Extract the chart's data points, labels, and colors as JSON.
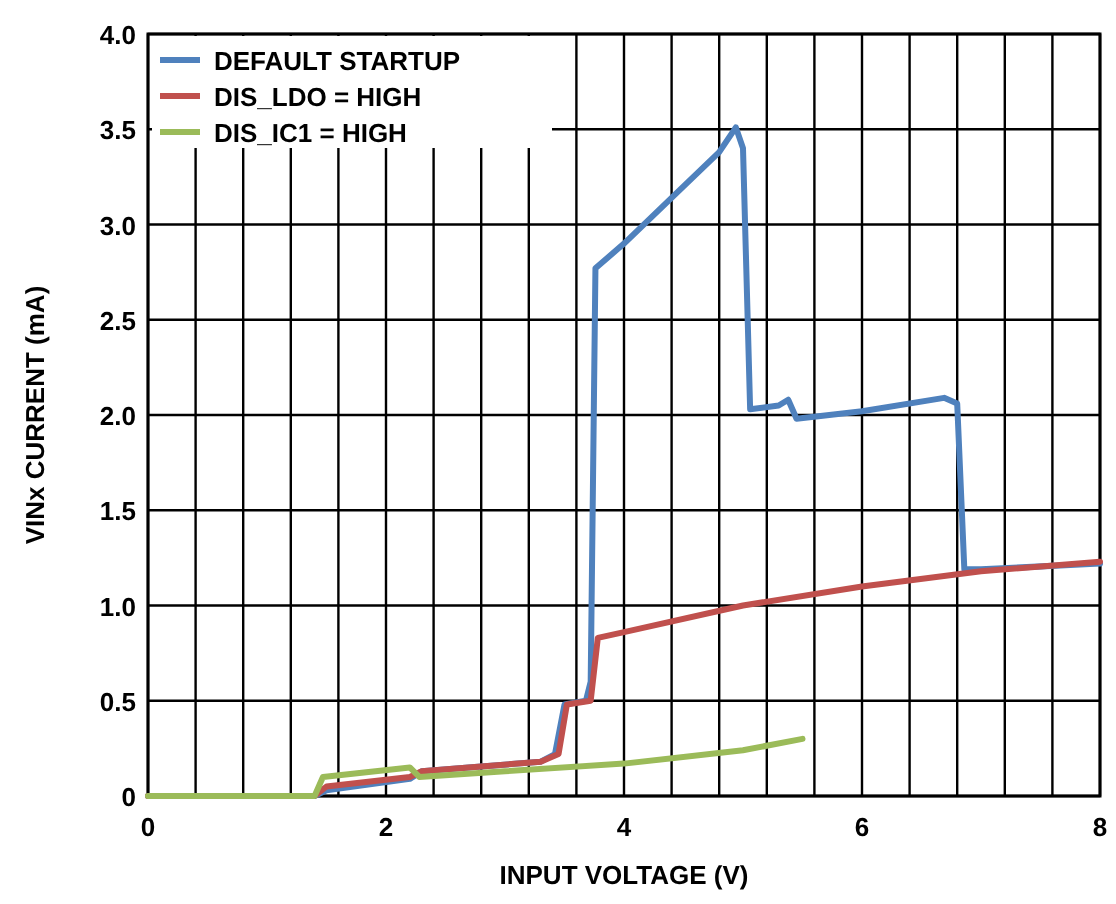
{
  "chart_data": {
    "type": "line",
    "xlabel": "INPUT VOLTAGE (V)",
    "ylabel": "VINx CURRENT (mA)",
    "xlim": [
      0,
      8
    ],
    "ylim": [
      0,
      4
    ],
    "xticks": [
      0,
      {
        "value": 0.4,
        "label": null
      },
      {
        "value": 0.8,
        "label": null
      },
      {
        "value": 1.2,
        "label": null
      },
      {
        "value": 1.6,
        "label": null
      },
      2,
      {
        "value": 2.4,
        "label": null
      },
      {
        "value": 2.8,
        "label": null
      },
      {
        "value": 3.2,
        "label": null
      },
      {
        "value": 3.6,
        "label": null
      },
      4,
      {
        "value": 4.4,
        "label": null
      },
      {
        "value": 4.8,
        "label": null
      },
      {
        "value": 5.2,
        "label": null
      },
      {
        "value": 5.6,
        "label": null
      },
      6,
      {
        "value": 6.4,
        "label": null
      },
      {
        "value": 6.8,
        "label": null
      },
      {
        "value": 7.2,
        "label": null
      },
      {
        "value": 7.6,
        "label": null
      },
      8
    ],
    "yticks": [
      {
        "value": 0,
        "label": "0"
      },
      {
        "value": 0.5,
        "label": "0.5"
      },
      {
        "value": 1,
        "label": "1.0"
      },
      {
        "value": 1.5,
        "label": "1.5"
      },
      {
        "value": 2,
        "label": "2.0"
      },
      {
        "value": 2.5,
        "label": "2.5"
      },
      {
        "value": 3,
        "label": "3.0"
      },
      {
        "value": 3.5,
        "label": "3.5"
      },
      {
        "value": 4,
        "label": "4.0"
      }
    ],
    "grid": true,
    "legend": "top left",
    "line_style": "solid",
    "marker": "none",
    "series": [
      {
        "name": "DEFAULT STARTUP",
        "color": "#4f81bd",
        "x": [
          0,
          1.4,
          1.5,
          2.2,
          2.3,
          3.3,
          3.42,
          3.5,
          3.68,
          3.72,
          3.76,
          4.0,
          4.5,
          4.8,
          4.94,
          5.0,
          5.06,
          5.3,
          5.38,
          5.45,
          6.0,
          6.69,
          6.8,
          6.86,
          7,
          8
        ],
        "values": [
          0,
          0,
          0.03,
          0.09,
          0.13,
          0.18,
          0.22,
          0.48,
          0.5,
          0.6,
          2.77,
          2.9,
          3.2,
          3.38,
          3.51,
          3.4,
          2.03,
          2.05,
          2.08,
          1.98,
          2.02,
          2.09,
          2.06,
          1.19,
          1.19,
          1.22
        ]
      },
      {
        "name": "DIS_LDO = HIGH",
        "color": "#c0504d",
        "x": [
          0,
          1.4,
          1.5,
          2.2,
          2.3,
          3.3,
          3.45,
          3.52,
          3.72,
          3.78,
          4,
          5,
          6,
          7,
          8
        ],
        "values": [
          0,
          0,
          0.05,
          0.1,
          0.13,
          0.18,
          0.22,
          0.48,
          0.5,
          0.83,
          0.86,
          1.0,
          1.1,
          1.18,
          1.23
        ]
      },
      {
        "name": "DIS_IC1 = HIGH",
        "color": "#9bbb59",
        "x": [
          0,
          1.4,
          1.47,
          2.2,
          2.28,
          3,
          4,
          5,
          5.5
        ],
        "values": [
          0,
          0,
          0.1,
          0.15,
          0.1,
          0.13,
          0.17,
          0.24,
          0.3
        ]
      }
    ]
  }
}
